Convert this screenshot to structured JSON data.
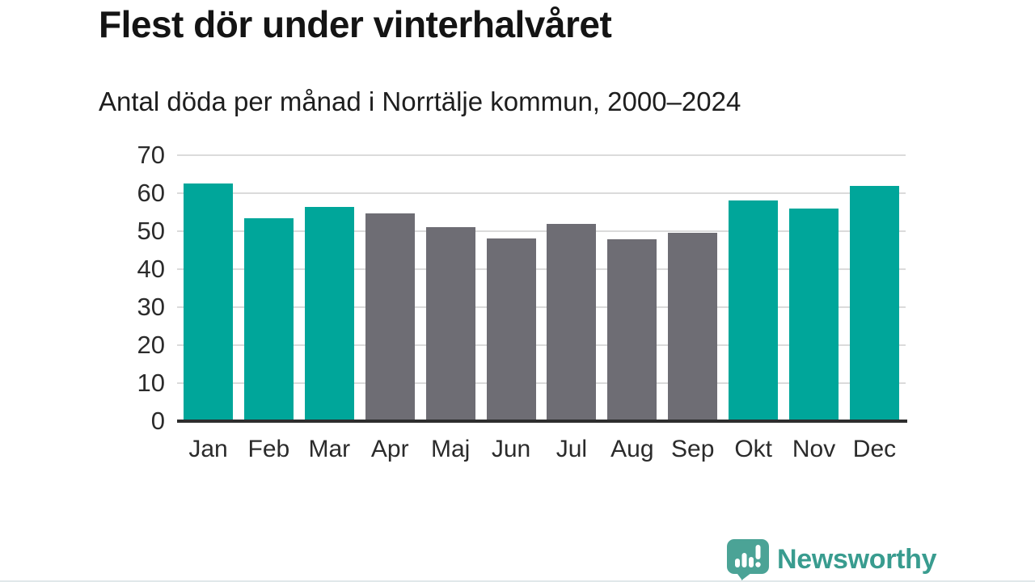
{
  "title": "Flest dör under vinterhalvåret",
  "subtitle": "Antal döda per månad i Norrtälje kommun, 2000–2024",
  "chart_data": {
    "type": "bar",
    "title": "Flest dör under vinterhalvåret",
    "subtitle": "Antal döda per månad i Norrtälje kommun, 2000–2024",
    "categories": [
      "Jan",
      "Feb",
      "Mar",
      "Apr",
      "Maj",
      "Jun",
      "Jul",
      "Aug",
      "Sep",
      "Okt",
      "Nov",
      "Dec"
    ],
    "values": [
      62.5,
      53.5,
      56.4,
      54.7,
      51,
      48,
      52,
      47.8,
      49.5,
      58,
      56,
      62
    ],
    "bar_colors": [
      "teal",
      "teal",
      "teal",
      "gray",
      "gray",
      "gray",
      "gray",
      "gray",
      "gray",
      "teal",
      "teal",
      "teal"
    ],
    "xlabel": "",
    "ylabel": "",
    "ylim": [
      0,
      70
    ],
    "yticks": [
      0,
      10,
      20,
      30,
      40,
      50,
      60,
      70
    ],
    "grid": true,
    "legend": false
  },
  "colors": {
    "teal": "#00A69A",
    "gray": "#6E6D74",
    "gridline": "#DBDBDB",
    "axis": "#2D2D2D",
    "tick_text": "#2B2B2B",
    "title_text": "#141414",
    "logo_icon": "#4BA396",
    "logo_text": "#399C8F"
  },
  "branding": {
    "name": "Newsworthy",
    "icon": "newsworthy-chart-bubble-icon"
  }
}
